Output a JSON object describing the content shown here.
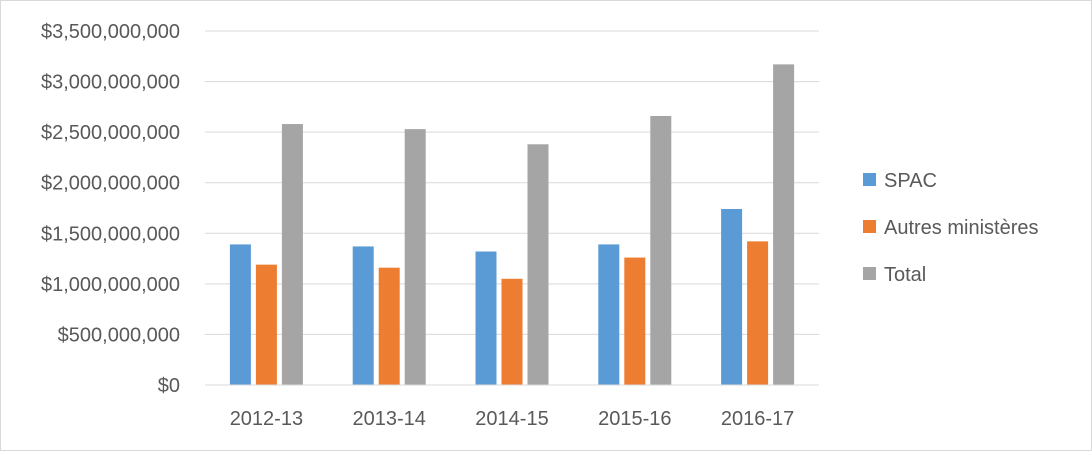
{
  "chart_data": {
    "type": "bar",
    "title": "",
    "xlabel": "",
    "ylabel": "",
    "categories": [
      "2012-13",
      "2013-14",
      "2014-15",
      "2015-16",
      "2016-17"
    ],
    "series": [
      {
        "name": "SPAC",
        "color": "#5b9bd5",
        "values": [
          1390000000,
          1370000000,
          1320000000,
          1390000000,
          1740000000
        ]
      },
      {
        "name": "Autres ministères",
        "color": "#ed7d31",
        "values": [
          1190000000,
          1160000000,
          1050000000,
          1260000000,
          1420000000
        ]
      },
      {
        "name": "Total",
        "color": "#a5a5a5",
        "values": [
          2580000000,
          2530000000,
          2380000000,
          2660000000,
          3170000000
        ]
      }
    ],
    "ylim": [
      0,
      3500000000
    ],
    "yticks": [
      0,
      500000000,
      1000000000,
      1500000000,
      2000000000,
      2500000000,
      3000000000,
      3500000000
    ],
    "ytick_labels": [
      "$0",
      "$500,000,000",
      "$1,000,000,000",
      "$1,500,000,000",
      "$2,000,000,000",
      "$2,500,000,000",
      "$3,000,000,000",
      "$3,500,000,000"
    ],
    "grid": true,
    "legend_position": "right"
  }
}
